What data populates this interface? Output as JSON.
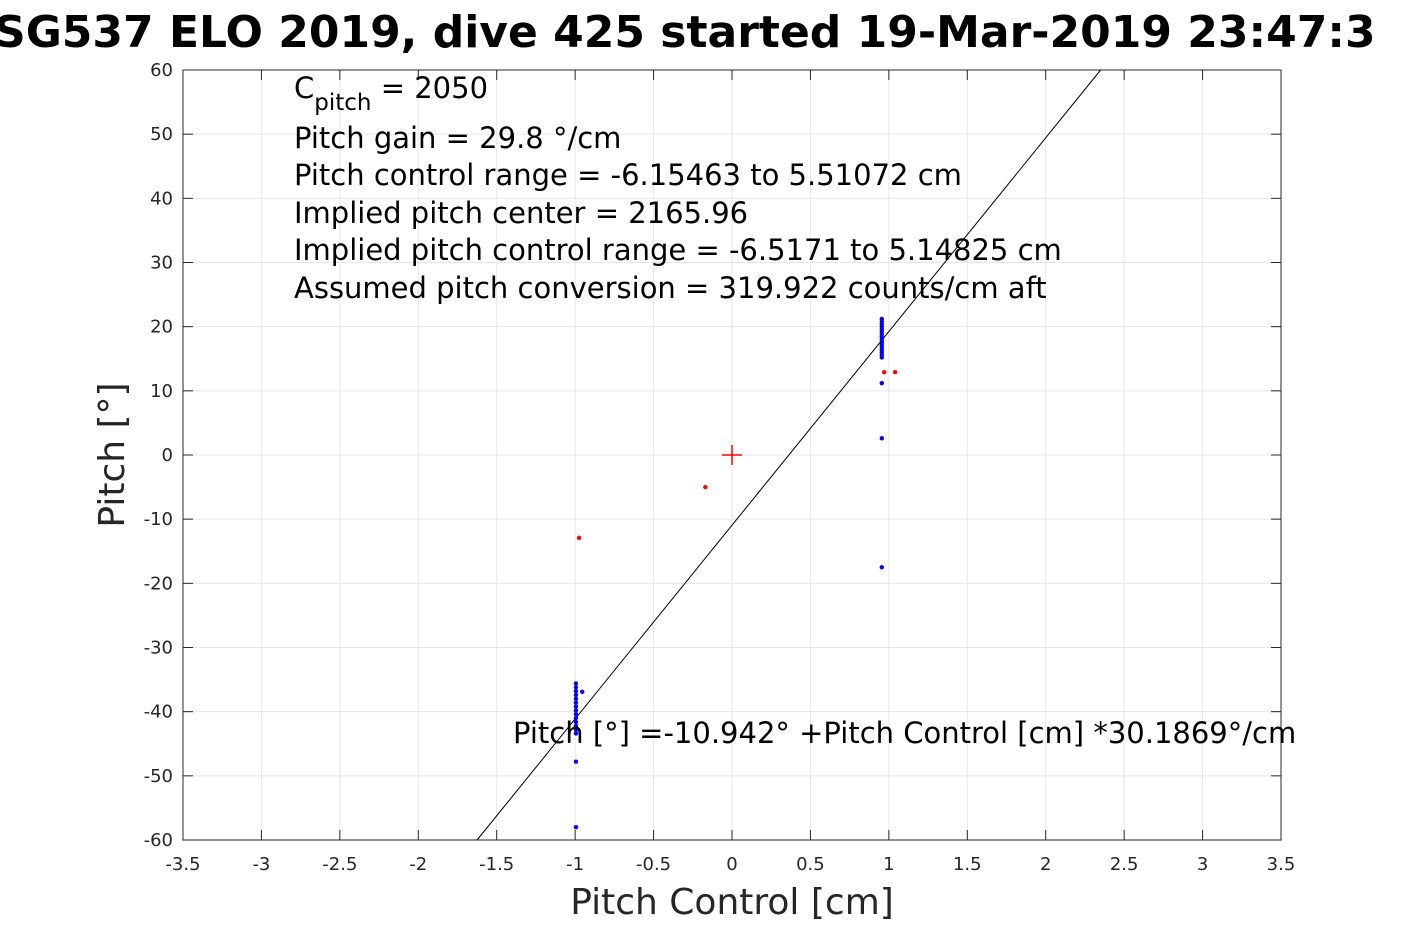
{
  "chart_data": {
    "type": "scatter",
    "title": "SG537 ELO 2019, dive 425 started 19-Mar-2019 23:47:3",
    "xlabel": "Pitch Control [cm]",
    "ylabel": "Pitch [°]",
    "xlim": [
      -3.5,
      3.5
    ],
    "ylim": [
      -60,
      60
    ],
    "xticks": [
      "-3.5",
      "-3",
      "-2.5",
      "-2",
      "-1.5",
      "-1",
      "-0.5",
      "0",
      "0.5",
      "1",
      "1.5",
      "2",
      "2.5",
      "3",
      "3.5"
    ],
    "xtick_values": [
      -3.5,
      -3,
      -2.5,
      -2,
      -1.5,
      -1,
      -0.5,
      0,
      0.5,
      1,
      1.5,
      2,
      2.5,
      3,
      3.5
    ],
    "yticks": [
      "60",
      "50",
      "40",
      "30",
      "20",
      "10",
      "0",
      "-10",
      "-20",
      "-30",
      "-40",
      "-50",
      "-60"
    ],
    "ytick_values": [
      60,
      50,
      40,
      30,
      20,
      10,
      0,
      -10,
      -20,
      -30,
      -40,
      -50,
      -60
    ],
    "grid": true,
    "colors": {
      "good": "#0000ff",
      "bad": "#ff0000",
      "fit": "#000000",
      "center": "#ff0000"
    },
    "series": [
      {
        "color": "good",
        "points": [
          [
            0.955,
            21.2
          ],
          [
            0.955,
            20.8
          ],
          [
            0.955,
            20.4
          ],
          [
            0.955,
            20.0
          ],
          [
            0.955,
            19.6
          ],
          [
            0.955,
            19.2
          ],
          [
            0.955,
            18.8
          ],
          [
            0.955,
            18.4
          ],
          [
            0.955,
            18.0
          ],
          [
            0.955,
            17.6
          ],
          [
            0.955,
            17.2
          ],
          [
            0.955,
            16.8
          ],
          [
            0.955,
            16.4
          ],
          [
            0.955,
            16.0
          ],
          [
            0.955,
            15.6
          ],
          [
            0.955,
            15.2
          ],
          [
            0.955,
            11.2
          ],
          [
            0.955,
            2.6
          ],
          [
            0.955,
            -17.5
          ],
          [
            -0.995,
            -35.6
          ],
          [
            -0.995,
            -36.2
          ],
          [
            -0.995,
            -36.8
          ],
          [
            -0.995,
            -37.4
          ],
          [
            -0.995,
            -38.0
          ],
          [
            -0.995,
            -38.6
          ],
          [
            -0.995,
            -39.2
          ],
          [
            -0.995,
            -39.8
          ],
          [
            -0.995,
            -40.4
          ],
          [
            -0.995,
            -41.0
          ],
          [
            -0.995,
            -41.6
          ],
          [
            -0.995,
            -42.2
          ],
          [
            -0.995,
            -42.8
          ],
          [
            -0.995,
            -43.4
          ],
          [
            -0.955,
            -36.9
          ],
          [
            -0.995,
            -47.8
          ],
          [
            -0.995,
            -58.0
          ]
        ]
      },
      {
        "color": "bad",
        "points": [
          [
            0.97,
            12.9
          ],
          [
            1.04,
            12.9
          ],
          [
            -0.17,
            -5.0
          ],
          [
            -0.975,
            -12.9
          ]
        ]
      }
    ],
    "center_marker": [
      0,
      0
    ],
    "fit_line": {
      "intercept": -10.942,
      "slope": 30.1869
    },
    "annotations": {
      "c_pitch_prefix": "C",
      "c_pitch_sub": "pitch",
      "c_pitch_value": " = 2050",
      "pitch_gain": "Pitch gain = 29.8 °/cm",
      "control_range": "Pitch control range = -6.15463 to 5.51072 cm",
      "implied_center": "Implied pitch center = 2165.96",
      "implied_range": "Implied pitch control range = -6.5171 to 5.14825 cm",
      "conversion": "Assumed pitch conversion = 319.922 counts/cm aft",
      "fit_equation": "Pitch [°] =-10.942° +Pitch Control [cm] *30.1869°/cm"
    }
  }
}
